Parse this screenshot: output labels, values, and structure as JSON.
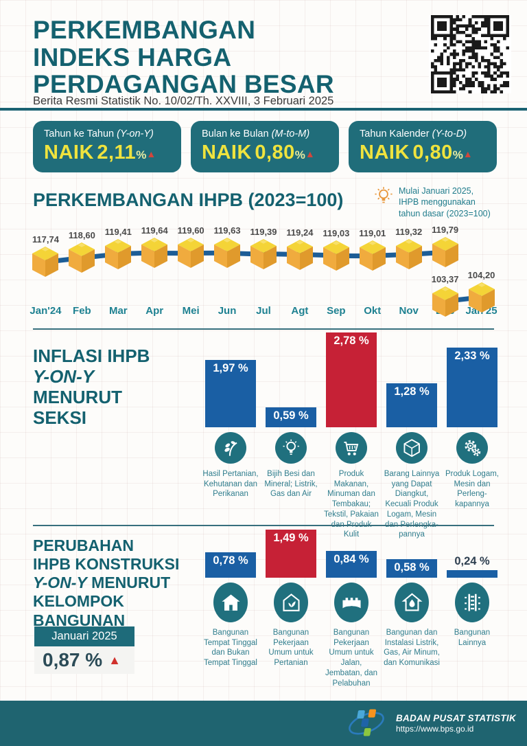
{
  "header": {
    "title_lines": [
      "PERKEMBANGAN",
      "INDEKS HARGA",
      "PERDAGANGAN BESAR"
    ],
    "subtitle": "Berita Resmi Statistik No. 10/02/Th. XXVIII, 3 Februari 2025"
  },
  "kpis": [
    {
      "label": "Tahun ke Tahun",
      "paren": "(Y-on-Y)",
      "action": "NAIK",
      "value": "2,11",
      "unit": "%",
      "direction": "up"
    },
    {
      "label": "Bulan ke Bulan",
      "paren": "(M-to-M)",
      "action": "NAIK",
      "value": "0,80",
      "unit": "%",
      "direction": "up"
    },
    {
      "label": "Tahun Kalender",
      "paren": "(Y-to-D)",
      "action": "NAIK",
      "value": "0,80",
      "unit": "%",
      "direction": "up"
    }
  ],
  "line_section": {
    "title": "PERKEMBANGAN IHPB (2023=100)",
    "note_lines": [
      "Mulai Januari 2025,",
      "IHPB menggunakan",
      "tahun dasar (2023=100)"
    ]
  },
  "inflasi_section": {
    "title_lines": [
      "INFLASI IHPB",
      "Y-ON-Y",
      "MENURUT",
      "SEKSI"
    ]
  },
  "konstruksi_section": {
    "title_lines": [
      "PERUBAHAN",
      "IHPB KONSTRUKSI",
      "Y-ON-Y MENURUT",
      "KELOMPOK",
      "BANGUNAN"
    ],
    "badge": "Januari 2025",
    "value": "0,87 %"
  },
  "footer": {
    "org": "BADAN PUSAT STATISTIK",
    "url": "https://www.bps.go.id"
  },
  "colors": {
    "teal": "#206d7a",
    "heading_teal": "#14616f",
    "yellow": "#efe33e",
    "red_triangle": "#d2463c",
    "blue_bar": "#1a5fa4",
    "red_bar": "#c62136",
    "line_blue": "#1d5d96",
    "cube_top": "#f4d437",
    "cube_left": "#f0ab3e",
    "cube_right": "#e09a2c"
  },
  "chart_data": [
    {
      "type": "line",
      "title": "PERKEMBANGAN IHPB (2023=100)",
      "x": [
        "Jan'24",
        "Feb",
        "Mar",
        "Apr",
        "Mei",
        "Jun",
        "Jul",
        "Agt",
        "Sep",
        "Okt",
        "Nov",
        "Des",
        "Jan'25"
      ],
      "series": [
        {
          "name": "IHPB tahun dasar lama",
          "values": [
            117.74,
            118.6,
            119.41,
            119.64,
            119.6,
            119.63,
            119.39,
            119.24,
            119.03,
            119.01,
            119.32,
            119.79,
            null
          ],
          "labels": [
            "117,74",
            "118,60",
            "119,41",
            "119,64",
            "119,60",
            "119,63",
            "119,39",
            "119,24",
            "119,03",
            "119,01",
            "119,32",
            "119,79",
            null
          ]
        },
        {
          "name": "IHPB tahun dasar (2023=100)",
          "values": [
            null,
            null,
            null,
            null,
            null,
            null,
            null,
            null,
            null,
            null,
            null,
            103.37,
            104.2
          ],
          "labels": [
            null,
            null,
            null,
            null,
            null,
            null,
            null,
            null,
            null,
            null,
            null,
            "103,37",
            "104,20"
          ]
        }
      ],
      "legend_position": "none",
      "grid": false
    },
    {
      "type": "bar",
      "title": "INFLASI IHPB Y-ON-Y MENURUT SEKSI",
      "categories": [
        "Hasil Pertanian, Kehutanan dan Perikanan",
        "Bijih Besi dan Mineral; Listrik, Gas dan Air",
        "Produk Makanan, Minuman dan Tembakau; Tekstil, Pakaian dan Produk Kulit",
        "Barang Lainnya yang Dapat Diangkut, Kecuali Produk Logam, Mesin dan Perlengka-pannya",
        "Produk Logam, Mesin dan Perleng-kapannya"
      ],
      "values": [
        1.97,
        0.59,
        2.78,
        1.28,
        2.33
      ],
      "labels": [
        "1,97 %",
        "0,59 %",
        "2,78 %",
        "1,28 %",
        "2,33 %"
      ],
      "bar_colors": [
        "#1a5fa4",
        "#1a5fa4",
        "#c62136",
        "#1a5fa4",
        "#1a5fa4"
      ],
      "icons": [
        "plant-icon",
        "lightbulb-icon",
        "cart-icon",
        "cube-icon",
        "gears-icon"
      ],
      "ylim": [
        0,
        3
      ],
      "grid": false
    },
    {
      "type": "bar",
      "title": "PERUBAHAN IHPB KONSTRUKSI Y-ON-Y MENURUT KELOMPOK BANGUNAN",
      "categories": [
        "Bangunan Tempat Tinggal dan Bukan Tempat Tinggal",
        "Bangunan Pekerjaan Umum untuk Pertanian",
        "Bangunan Pekerjaan Umum untuk Jalan, Jembatan, dan Pelabuhan",
        "Bangunan dan Instalasi Listrik, Gas, Air Minum, dan Komunikasi",
        "Bangunan Lainnya"
      ],
      "values": [
        0.78,
        1.49,
        0.84,
        0.58,
        0.24
      ],
      "labels": [
        "0,78 %",
        "1,49 %",
        "0,84 %",
        "0,58 %",
        "0,24 %"
      ],
      "bar_colors": [
        "#1a5fa4",
        "#c62136",
        "#1a5fa4",
        "#1a5fa4",
        "#1a5fa4"
      ],
      "icons": [
        "house-icon",
        "eco-house-icon",
        "bridge-icon",
        "water-house-icon",
        "railway-icon"
      ],
      "ylim": [
        0,
        1.6
      ],
      "grid": false
    }
  ]
}
